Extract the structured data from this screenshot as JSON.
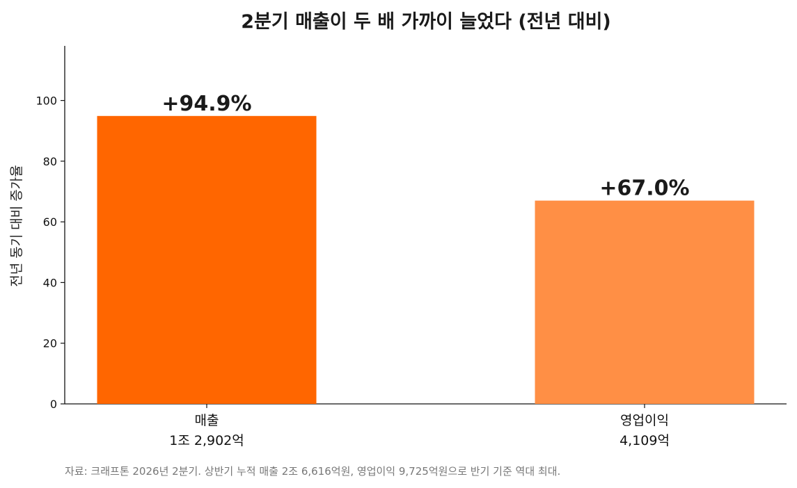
{
  "chart_data": {
    "type": "bar",
    "title": "2분기 매출이 두 배 가까이 늘었다 (전년 대비)",
    "ylabel": "전년 동기 대비 증가율",
    "xlabel": "",
    "ylim": [
      0,
      118
    ],
    "yticks": [
      0,
      20,
      40,
      60,
      80,
      100
    ],
    "grid": false,
    "categories": [
      {
        "name": "매출",
        "sub": "1조 2,902억"
      },
      {
        "name": "영업이익",
        "sub": "4,109억"
      }
    ],
    "values": [
      94.9,
      67.0
    ],
    "data_labels": [
      "+94.9%",
      "+67.0%"
    ],
    "colors": [
      "#ff6600",
      "#ff8f45"
    ],
    "source": "자료: 크래프톤 2026년 2분기. 상반기 누적 매출 2조 6,616억원, 영업이익 9,725억원으로 반기 기준 역대 최대."
  }
}
